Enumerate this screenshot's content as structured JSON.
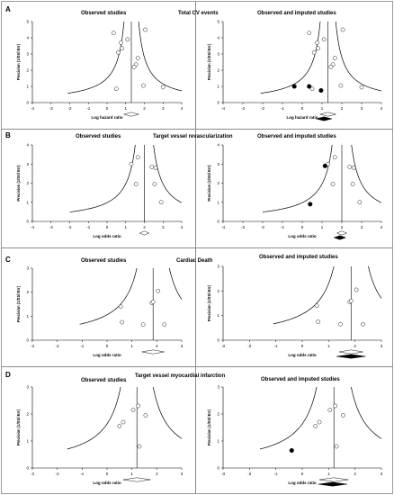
{
  "sections": [
    {
      "letter": "A",
      "title": "Total CV events",
      "left_title": "Observed studies",
      "right_title": "Observed and imputed studies"
    },
    {
      "letter": "B",
      "title": "Target vessel revascularization",
      "left_title": "Observed studies",
      "right_title": "Observed and imputed studies"
    },
    {
      "letter": "C",
      "title": "Cardiac Death",
      "left_title": "Observed studies",
      "right_title": "Observed and imputed studies"
    },
    {
      "letter": "D",
      "title": "Target vessel myocardial infarction",
      "left_title": "Observed studies",
      "right_title": "Observed and imputed studies"
    }
  ],
  "colors": {
    "observed_point_fill": "#ffffff",
    "imputed_point_fill": "#000000",
    "funnel_line": "#000000",
    "frame": "#9a9a9a"
  },
  "chart_data": [
    {
      "panel": "A-left",
      "type": "scatter",
      "title": "Observed studies",
      "xlabel": "Log hazard ratio",
      "ylabel": "Precision (1/Std Err)",
      "xlim": [
        -4,
        4
      ],
      "ylim": [
        0,
        5
      ],
      "xticks": [
        "-4",
        "-3",
        "-2",
        "-1",
        "0",
        "1",
        "2",
        "3",
        "4"
      ],
      "yticks": [
        "0",
        "1",
        "2",
        "3",
        "4",
        "5"
      ],
      "funnel_center": 1.3,
      "funnel_xmin": -2.1,
      "funnel_xmax": 4.0,
      "observed": [
        [
          0.35,
          4.3
        ],
        [
          0.6,
          3.1
        ],
        [
          0.75,
          3.7
        ],
        [
          0.8,
          3.35
        ],
        [
          1.1,
          3.9
        ],
        [
          1.65,
          2.75
        ],
        [
          1.55,
          2.35
        ],
        [
          1.45,
          2.2
        ],
        [
          2.05,
          4.5
        ],
        [
          0.5,
          0.85
        ],
        [
          1.95,
          1.05
        ],
        [
          3.0,
          0.95
        ]
      ],
      "imputed": [],
      "diamond_observed": {
        "center": 1.3,
        "low": 0.9,
        "high": 1.7
      },
      "diamond_imputed": null
    },
    {
      "panel": "A-right",
      "type": "scatter",
      "title": "Observed and imputed studies",
      "xlabel": "Log hazard ratio",
      "ylabel": "Precision (1/Std Err)",
      "xlim": [
        -4,
        4
      ],
      "ylim": [
        0,
        5
      ],
      "xticks": [
        "-4",
        "-3",
        "-2",
        "-1",
        "0",
        "1",
        "2",
        "3",
        "4"
      ],
      "yticks": [
        "0",
        "1",
        "2",
        "3",
        "4",
        "5"
      ],
      "funnel_center": 1.3,
      "funnel_xmin": -2.1,
      "funnel_xmax": 4.0,
      "observed": [
        [
          0.35,
          4.3
        ],
        [
          0.6,
          3.1
        ],
        [
          0.75,
          3.7
        ],
        [
          0.8,
          3.35
        ],
        [
          1.1,
          3.9
        ],
        [
          1.65,
          2.75
        ],
        [
          1.55,
          2.35
        ],
        [
          1.45,
          2.2
        ],
        [
          2.05,
          4.5
        ],
        [
          0.5,
          0.85
        ],
        [
          1.95,
          1.05
        ],
        [
          3.0,
          0.95
        ]
      ],
      "imputed": [
        [
          -0.4,
          1.0
        ],
        [
          0.35,
          1.0
        ],
        [
          0.95,
          0.75
        ]
      ],
      "diamond_observed": {
        "center": 1.3,
        "low": 0.9,
        "high": 1.7
      },
      "diamond_imputed": {
        "center": 1.1,
        "low": 0.7,
        "high": 1.5
      }
    },
    {
      "panel": "B-left",
      "type": "scatter",
      "title": "Observed studies",
      "xlabel": "Log odds ratio",
      "ylabel": "Precision (1/Std Err)",
      "xlim": [
        -4,
        4
      ],
      "ylim": [
        0,
        4
      ],
      "xticks": [
        "-4",
        "-3",
        "-2",
        "-1",
        "0",
        "1",
        "2",
        "3",
        "4"
      ],
      "yticks": [
        "0",
        "1",
        "2",
        "3",
        "4"
      ],
      "funnel_center": 2.0,
      "funnel_xmin": -2.0,
      "funnel_xmax": 4.0,
      "observed": [
        [
          1.3,
          3.0
        ],
        [
          1.65,
          3.35
        ],
        [
          2.4,
          2.85
        ],
        [
          2.6,
          2.8
        ],
        [
          1.55,
          1.95
        ],
        [
          2.55,
          1.95
        ],
        [
          2.9,
          1.0
        ]
      ],
      "imputed": [],
      "diamond_observed": {
        "center": 2.0,
        "low": 1.75,
        "high": 2.25
      },
      "diamond_imputed": null
    },
    {
      "panel": "B-right",
      "type": "scatter",
      "title": "Observed and imputed studies",
      "xlabel": "Log odds ratio",
      "ylabel": "Precision (1/Std Err)",
      "xlim": [
        -4,
        4
      ],
      "ylim": [
        0,
        4
      ],
      "xticks": [
        "-4",
        "-3",
        "-2",
        "-1",
        "0",
        "1",
        "2",
        "3",
        "4"
      ],
      "yticks": [
        "0",
        "1",
        "2",
        "3",
        "4"
      ],
      "funnel_center": 2.0,
      "funnel_xmin": -2.0,
      "funnel_xmax": 4.0,
      "observed": [
        [
          1.3,
          3.0
        ],
        [
          1.65,
          3.35
        ],
        [
          2.4,
          2.85
        ],
        [
          2.6,
          2.8
        ],
        [
          1.55,
          1.95
        ],
        [
          2.55,
          1.95
        ],
        [
          2.9,
          1.0
        ]
      ],
      "imputed": [
        [
          1.15,
          2.9
        ],
        [
          0.4,
          0.9
        ]
      ],
      "diamond_observed": {
        "center": 2.0,
        "low": 1.75,
        "high": 2.25
      },
      "diamond_imputed": {
        "center": 1.9,
        "low": 1.6,
        "high": 2.2
      }
    },
    {
      "panel": "C-left",
      "type": "scatter",
      "title": "Observed studies",
      "xlabel": "Log odds ratio",
      "ylabel": "Precision (1/Std Err)",
      "xlim": [
        -3,
        3
      ],
      "ylim": [
        0,
        3
      ],
      "xticks": [
        "-3",
        "-2",
        "-1",
        "0",
        "1",
        "2",
        "3"
      ],
      "yticks": [
        "0",
        "1",
        "2",
        "3"
      ],
      "funnel_center": 1.85,
      "funnel_xmin": -1.1,
      "funnel_xmax": 3.0,
      "observed": [
        [
          0.55,
          1.4
        ],
        [
          0.6,
          0.75
        ],
        [
          1.8,
          1.55
        ],
        [
          1.85,
          1.6
        ],
        [
          2.05,
          2.05
        ],
        [
          1.45,
          0.65
        ],
        [
          2.3,
          0.65
        ]
      ],
      "imputed": [],
      "diamond_observed": {
        "center": 1.85,
        "low": 1.4,
        "high": 2.3
      },
      "diamond_imputed": null
    },
    {
      "panel": "C-right",
      "type": "scatter",
      "title": "Observed and imputed studies",
      "xlabel": "Log odds ratio",
      "ylabel": "Precision (1/Std Err)",
      "xlim": [
        -3,
        3
      ],
      "ylim": [
        0,
        3
      ],
      "xticks": [
        "-3",
        "-2",
        "-1",
        "0",
        "1",
        "2",
        "3"
      ],
      "yticks": [
        "0",
        "1",
        "2",
        "3"
      ],
      "funnel_center": 1.85,
      "funnel_xmin": -1.1,
      "funnel_xmax": 3.0,
      "observed": [
        [
          0.55,
          1.4
        ],
        [
          0.6,
          0.75
        ],
        [
          1.8,
          1.55
        ],
        [
          1.85,
          1.6
        ],
        [
          2.05,
          2.05
        ],
        [
          1.45,
          0.65
        ],
        [
          2.3,
          0.65
        ]
      ],
      "imputed": [],
      "diamond_observed": {
        "center": 1.85,
        "low": 1.4,
        "high": 2.3
      },
      "diamond_imputed": {
        "center": 1.85,
        "low": 1.3,
        "high": 2.4
      }
    },
    {
      "panel": "D-left",
      "type": "scatter",
      "title": "Observed studies",
      "xlabel": "Log odds ratio",
      "ylabel": "Precision (1/Std Err)",
      "xlim": [
        -3,
        3
      ],
      "ylim": [
        0,
        3
      ],
      "xticks": [
        "-3",
        "-2",
        "-1",
        "0",
        "1",
        "2",
        "3"
      ],
      "yticks": [
        "0",
        "1",
        "2",
        "3"
      ],
      "funnel_center": 1.2,
      "funnel_xmin": -1.6,
      "funnel_xmax": 3.0,
      "observed": [
        [
          0.5,
          1.55
        ],
        [
          0.65,
          1.7
        ],
        [
          1.05,
          2.15
        ],
        [
          1.25,
          2.3
        ],
        [
          1.55,
          1.95
        ],
        [
          1.3,
          0.8
        ]
      ],
      "imputed": [],
      "diamond_observed": {
        "center": 1.2,
        "low": 0.65,
        "high": 1.75
      },
      "diamond_imputed": null
    },
    {
      "panel": "D-right",
      "type": "scatter",
      "title": "Observed and imputed studies",
      "xlabel": "Log odds ratio",
      "ylabel": "Precision (1/Std Err)",
      "xlim": [
        -3,
        3
      ],
      "ylim": [
        0,
        3
      ],
      "xticks": [
        "-3",
        "-2",
        "-1",
        "0",
        "1",
        "2",
        "3"
      ],
      "yticks": [
        "0",
        "1",
        "2",
        "3"
      ],
      "funnel_center": 1.2,
      "funnel_xmin": -1.6,
      "funnel_xmax": 3.0,
      "observed": [
        [
          0.5,
          1.55
        ],
        [
          0.65,
          1.7
        ],
        [
          1.05,
          2.15
        ],
        [
          1.25,
          2.3
        ],
        [
          1.55,
          1.95
        ],
        [
          1.3,
          0.8
        ]
      ],
      "imputed": [
        [
          -0.4,
          0.65
        ]
      ],
      "diamond_observed": {
        "center": 1.2,
        "low": 0.65,
        "high": 1.75
      },
      "diamond_imputed": {
        "center": 1.15,
        "low": 0.6,
        "high": 1.7
      }
    }
  ]
}
